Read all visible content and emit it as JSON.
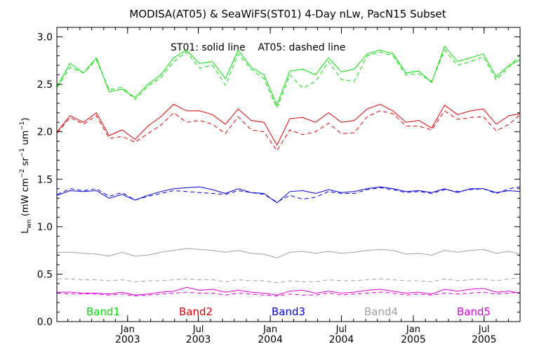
{
  "chart_data": {
    "type": "line",
    "title": "MODISA(AT05) & SeaWiFS(ST01) 4-Day nLw, PacN15 Subset",
    "ylabel": "L_wn (mW cm^-2 sr^-1 um^-1)",
    "ylim": [
      0.0,
      3.1
    ],
    "xlim": [
      "2002-07-04",
      "2005-10-01"
    ],
    "y_ticks": [
      "0.0",
      "0.5",
      "1.0",
      "1.5",
      "2.0",
      "2.5",
      "3.0"
    ],
    "x_ticks": [
      {
        "date": "2003-01-01",
        "top": "Jan",
        "bottom": "2003"
      },
      {
        "date": "2003-07-01",
        "top": "Jul",
        "bottom": "2003"
      },
      {
        "date": "2004-01-01",
        "top": "Jan",
        "bottom": "2004"
      },
      {
        "date": "2004-07-01",
        "top": "Jul",
        "bottom": "2004"
      },
      {
        "date": "2005-01-01",
        "top": "Jan",
        "bottom": "2005"
      },
      {
        "date": "2005-07-01",
        "top": "Jul",
        "bottom": "2005"
      }
    ],
    "line_style_note": "ST01: solid line    AT05: dashed line",
    "x": [
      "2002-07-05",
      "2002-08-07",
      "2002-09-10",
      "2002-10-13",
      "2002-11-15",
      "2002-12-18",
      "2003-01-20",
      "2003-02-22",
      "2003-03-27",
      "2003-04-29",
      "2003-06-01",
      "2003-07-04",
      "2003-08-06",
      "2003-09-08",
      "2003-10-11",
      "2003-11-13",
      "2003-12-16",
      "2004-01-18",
      "2004-02-20",
      "2004-03-24",
      "2004-04-26",
      "2004-05-29",
      "2004-07-01",
      "2004-08-03",
      "2004-09-05",
      "2004-10-08",
      "2004-11-10",
      "2004-12-13",
      "2005-01-15",
      "2005-02-17",
      "2005-03-22",
      "2005-04-24",
      "2005-05-27",
      "2005-06-29",
      "2005-08-01",
      "2005-09-03",
      "2005-10-01"
    ],
    "series": [
      {
        "name": "Band1",
        "style": "solid",
        "color": "#00e000",
        "values": [
          2.48,
          2.72,
          2.62,
          2.78,
          2.42,
          2.45,
          2.36,
          2.5,
          2.6,
          2.78,
          2.86,
          2.72,
          2.74,
          2.56,
          2.86,
          2.68,
          2.6,
          2.28,
          2.64,
          2.66,
          2.6,
          2.78,
          2.63,
          2.66,
          2.82,
          2.86,
          2.82,
          2.62,
          2.64,
          2.52,
          2.9,
          2.74,
          2.78,
          2.82,
          2.58,
          2.7,
          2.76
        ]
      },
      {
        "name": "Band1",
        "style": "dashed",
        "color": "#00e000",
        "values": [
          2.47,
          2.68,
          2.62,
          2.76,
          2.44,
          2.47,
          2.34,
          2.48,
          2.57,
          2.74,
          2.84,
          2.67,
          2.7,
          2.49,
          2.82,
          2.66,
          2.56,
          2.25,
          2.6,
          2.46,
          2.53,
          2.74,
          2.55,
          2.53,
          2.8,
          2.84,
          2.8,
          2.6,
          2.61,
          2.53,
          2.86,
          2.7,
          2.74,
          2.79,
          2.55,
          2.68,
          2.81
        ]
      },
      {
        "name": "Band2",
        "style": "solid",
        "color": "#e00000",
        "values": [
          2.0,
          2.17,
          2.1,
          2.2,
          1.96,
          2.02,
          1.92,
          2.06,
          2.16,
          2.29,
          2.22,
          2.22,
          2.18,
          2.08,
          2.24,
          2.12,
          2.1,
          1.86,
          2.14,
          2.15,
          2.1,
          2.2,
          2.1,
          2.12,
          2.24,
          2.29,
          2.22,
          2.1,
          2.12,
          2.04,
          2.28,
          2.18,
          2.22,
          2.24,
          2.08,
          2.17,
          2.19
        ]
      },
      {
        "name": "Band2",
        "style": "dashed",
        "color": "#e00000",
        "values": [
          1.99,
          2.15,
          2.08,
          2.17,
          1.93,
          1.95,
          1.89,
          1.98,
          2.07,
          2.2,
          2.1,
          2.12,
          2.08,
          1.98,
          2.16,
          2.02,
          2.0,
          1.8,
          2.02,
          1.97,
          2.0,
          2.09,
          1.98,
          1.99,
          2.16,
          2.22,
          2.19,
          2.06,
          2.06,
          2.02,
          2.22,
          2.13,
          2.15,
          2.16,
          2.01,
          2.08,
          2.18
        ]
      },
      {
        "name": "Band3",
        "style": "solid",
        "color": "#0000e0",
        "values": [
          1.33,
          1.38,
          1.37,
          1.38,
          1.3,
          1.34,
          1.28,
          1.33,
          1.37,
          1.4,
          1.41,
          1.42,
          1.39,
          1.35,
          1.4,
          1.36,
          1.35,
          1.25,
          1.37,
          1.38,
          1.35,
          1.39,
          1.36,
          1.37,
          1.4,
          1.42,
          1.4,
          1.37,
          1.38,
          1.36,
          1.4,
          1.36,
          1.4,
          1.4,
          1.36,
          1.38,
          1.37
        ]
      },
      {
        "name": "Band3",
        "style": "dashed",
        "color": "#0000e0",
        "values": [
          1.34,
          1.4,
          1.38,
          1.4,
          1.32,
          1.36,
          1.28,
          1.32,
          1.35,
          1.38,
          1.37,
          1.36,
          1.35,
          1.34,
          1.38,
          1.36,
          1.34,
          1.26,
          1.33,
          1.29,
          1.31,
          1.37,
          1.35,
          1.35,
          1.39,
          1.41,
          1.39,
          1.36,
          1.37,
          1.35,
          1.39,
          1.37,
          1.39,
          1.4,
          1.35,
          1.4,
          1.42
        ]
      },
      {
        "name": "Band4",
        "style": "solid",
        "color": "#a0a0a0",
        "values": [
          0.73,
          0.73,
          0.72,
          0.71,
          0.69,
          0.73,
          0.69,
          0.7,
          0.73,
          0.75,
          0.77,
          0.76,
          0.75,
          0.73,
          0.75,
          0.72,
          0.71,
          0.67,
          0.73,
          0.74,
          0.72,
          0.74,
          0.72,
          0.73,
          0.75,
          0.76,
          0.75,
          0.71,
          0.72,
          0.7,
          0.75,
          0.73,
          0.75,
          0.76,
          0.72,
          0.74,
          0.71
        ]
      },
      {
        "name": "Band4",
        "style": "dashed",
        "color": "#a0a0a0",
        "values": [
          0.45,
          0.45,
          0.44,
          0.44,
          0.43,
          0.44,
          0.42,
          0.43,
          0.43,
          0.44,
          0.45,
          0.44,
          0.44,
          0.42,
          0.44,
          0.43,
          0.43,
          0.41,
          0.43,
          0.42,
          0.42,
          0.44,
          0.43,
          0.43,
          0.44,
          0.45,
          0.44,
          0.43,
          0.43,
          0.42,
          0.45,
          0.43,
          0.44,
          0.45,
          0.43,
          0.45,
          0.46
        ]
      },
      {
        "name": "Band5",
        "style": "solid",
        "color": "#e000e0",
        "values": [
          0.31,
          0.31,
          0.3,
          0.3,
          0.29,
          0.31,
          0.28,
          0.29,
          0.31,
          0.32,
          0.36,
          0.33,
          0.34,
          0.31,
          0.33,
          0.31,
          0.3,
          0.28,
          0.32,
          0.33,
          0.3,
          0.32,
          0.3,
          0.31,
          0.33,
          0.34,
          0.32,
          0.3,
          0.31,
          0.29,
          0.34,
          0.32,
          0.34,
          0.35,
          0.31,
          0.32,
          0.3
        ]
      },
      {
        "name": "Band5",
        "style": "dashed",
        "color": "#e000e0",
        "values": [
          0.3,
          0.29,
          0.29,
          0.29,
          0.28,
          0.29,
          0.27,
          0.28,
          0.29,
          0.3,
          0.31,
          0.3,
          0.3,
          0.28,
          0.3,
          0.29,
          0.28,
          0.27,
          0.29,
          0.28,
          0.28,
          0.3,
          0.28,
          0.29,
          0.3,
          0.31,
          0.3,
          0.28,
          0.29,
          0.28,
          0.3,
          0.29,
          0.3,
          0.31,
          0.29,
          0.3,
          0.31
        ]
      }
    ],
    "legend": [
      {
        "label": "Band1",
        "color": "#00e000"
      },
      {
        "label": "Band2",
        "color": "#e00000"
      },
      {
        "label": "Band3",
        "color": "#0000e0"
      },
      {
        "label": "Band4",
        "color": "#a0a0a0"
      },
      {
        "label": "Band5",
        "color": "#e000e0"
      }
    ],
    "legend_placement": "bottom-inside",
    "grid": false
  }
}
